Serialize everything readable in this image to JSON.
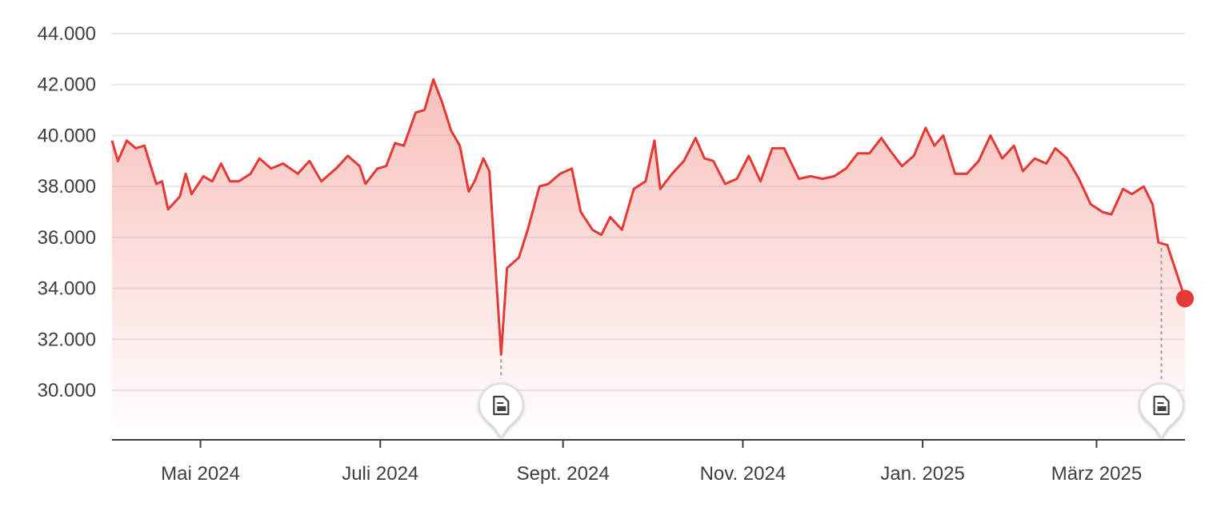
{
  "chart_data": {
    "type": "area",
    "ylim": [
      28000,
      44500
    ],
    "y_ticks": [
      30000,
      32000,
      34000,
      36000,
      38000,
      40000,
      42000,
      44000
    ],
    "y_tick_labels": [
      "30.000",
      "32.000",
      "34.000",
      "36.000",
      "38.000",
      "40.000",
      "42.000",
      "44.000"
    ],
    "x_range": [
      "2024-04-01",
      "2025-03-31"
    ],
    "x_ticks": [
      {
        "date": "2024-05-01",
        "label": "Mai 2024"
      },
      {
        "date": "2024-07-01",
        "label": "Juli 2024"
      },
      {
        "date": "2024-09-01",
        "label": "Sept. 2024"
      },
      {
        "date": "2024-11-01",
        "label": "Nov. 2024"
      },
      {
        "date": "2025-01-01",
        "label": "Jan. 2025"
      },
      {
        "date": "2025-03-01",
        "label": "März 2025"
      }
    ],
    "grid": "horizontal",
    "line_color": "#e53935",
    "fill_color": "#f28b82",
    "series": [
      {
        "points": [
          [
            "2024-04-01",
            39800
          ],
          [
            "2024-04-03",
            39000
          ],
          [
            "2024-04-06",
            39800
          ],
          [
            "2024-04-09",
            39500
          ],
          [
            "2024-04-12",
            39600
          ],
          [
            "2024-04-16",
            38100
          ],
          [
            "2024-04-18",
            38200
          ],
          [
            "2024-04-20",
            37100
          ],
          [
            "2024-04-24",
            37600
          ],
          [
            "2024-04-26",
            38500
          ],
          [
            "2024-04-28",
            37700
          ],
          [
            "2024-05-02",
            38400
          ],
          [
            "2024-05-05",
            38200
          ],
          [
            "2024-05-08",
            38900
          ],
          [
            "2024-05-11",
            38200
          ],
          [
            "2024-05-14",
            38200
          ],
          [
            "2024-05-18",
            38500
          ],
          [
            "2024-05-21",
            39100
          ],
          [
            "2024-05-25",
            38700
          ],
          [
            "2024-05-29",
            38900
          ],
          [
            "2024-06-03",
            38500
          ],
          [
            "2024-06-07",
            39000
          ],
          [
            "2024-06-11",
            38200
          ],
          [
            "2024-06-16",
            38700
          ],
          [
            "2024-06-20",
            39200
          ],
          [
            "2024-06-24",
            38800
          ],
          [
            "2024-06-26",
            38100
          ],
          [
            "2024-06-30",
            38700
          ],
          [
            "2024-07-03",
            38800
          ],
          [
            "2024-07-06",
            39700
          ],
          [
            "2024-07-09",
            39600
          ],
          [
            "2024-07-13",
            40900
          ],
          [
            "2024-07-16",
            41000
          ],
          [
            "2024-07-19",
            42200
          ],
          [
            "2024-07-22",
            41300
          ],
          [
            "2024-07-25",
            40200
          ],
          [
            "2024-07-28",
            39600
          ],
          [
            "2024-07-31",
            37800
          ],
          [
            "2024-08-02",
            38200
          ],
          [
            "2024-08-05",
            39100
          ],
          [
            "2024-08-07",
            38600
          ],
          [
            "2024-08-11",
            31400
          ],
          [
            "2024-08-13",
            34800
          ],
          [
            "2024-08-15",
            35000
          ],
          [
            "2024-08-17",
            35200
          ],
          [
            "2024-08-20",
            36300
          ],
          [
            "2024-08-24",
            38000
          ],
          [
            "2024-08-27",
            38100
          ],
          [
            "2024-08-31",
            38500
          ],
          [
            "2024-09-04",
            38700
          ],
          [
            "2024-09-07",
            37000
          ],
          [
            "2024-09-11",
            36300
          ],
          [
            "2024-09-14",
            36100
          ],
          [
            "2024-09-17",
            36800
          ],
          [
            "2024-09-21",
            36300
          ],
          [
            "2024-09-25",
            37900
          ],
          [
            "2024-09-29",
            38200
          ],
          [
            "2024-10-02",
            39800
          ],
          [
            "2024-10-04",
            37900
          ],
          [
            "2024-10-08",
            38500
          ],
          [
            "2024-10-12",
            39000
          ],
          [
            "2024-10-16",
            39900
          ],
          [
            "2024-10-19",
            39100
          ],
          [
            "2024-10-22",
            39000
          ],
          [
            "2024-10-26",
            38100
          ],
          [
            "2024-10-30",
            38300
          ],
          [
            "2024-11-03",
            39200
          ],
          [
            "2024-11-07",
            38200
          ],
          [
            "2024-11-11",
            39500
          ],
          [
            "2024-11-15",
            39500
          ],
          [
            "2024-11-20",
            38300
          ],
          [
            "2024-11-24",
            38400
          ],
          [
            "2024-11-28",
            38300
          ],
          [
            "2024-12-02",
            38400
          ],
          [
            "2024-12-06",
            38700
          ],
          [
            "2024-12-10",
            39300
          ],
          [
            "2024-12-14",
            39300
          ],
          [
            "2024-12-18",
            39900
          ],
          [
            "2024-12-21",
            39400
          ],
          [
            "2024-12-25",
            38800
          ],
          [
            "2024-12-29",
            39200
          ],
          [
            "2025-01-02",
            40300
          ],
          [
            "2025-01-05",
            39600
          ],
          [
            "2025-01-08",
            40000
          ],
          [
            "2025-01-12",
            38500
          ],
          [
            "2025-01-16",
            38500
          ],
          [
            "2025-01-20",
            39000
          ],
          [
            "2025-01-24",
            40000
          ],
          [
            "2025-01-28",
            39100
          ],
          [
            "2025-02-01",
            39600
          ],
          [
            "2025-02-04",
            38600
          ],
          [
            "2025-02-08",
            39100
          ],
          [
            "2025-02-12",
            38900
          ],
          [
            "2025-02-15",
            39500
          ],
          [
            "2025-02-19",
            39100
          ],
          [
            "2025-02-23",
            38300
          ],
          [
            "2025-02-27",
            37300
          ],
          [
            "2025-03-03",
            37000
          ],
          [
            "2025-03-06",
            36900
          ],
          [
            "2025-03-10",
            37900
          ],
          [
            "2025-03-13",
            37700
          ],
          [
            "2025-03-17",
            38000
          ],
          [
            "2025-03-20",
            37300
          ],
          [
            "2025-03-22",
            35800
          ],
          [
            "2025-03-25",
            35700
          ],
          [
            "2025-03-31",
            33600
          ]
        ]
      }
    ],
    "markers": [
      {
        "date": "2024-08-11",
        "icon": "document-icon"
      },
      {
        "date": "2025-03-23",
        "icon": "document-icon"
      }
    ],
    "end_point": {
      "date": "2025-03-31",
      "value": 33600
    }
  }
}
